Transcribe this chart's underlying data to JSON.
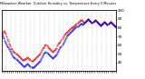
{
  "title": "Milwaukee Weather  Outdoor Humidity vs. Temperature Every 5 Minutes",
  "bg_color": "#ffffff",
  "grid_color": "#c0c0c0",
  "temp_color": "#dd0000",
  "humid_color": "#0000dd",
  "ylim_temp": [
    15,
    80
  ],
  "ylim_humid": [
    30,
    100
  ],
  "right_yticks": [
    40,
    50,
    60,
    70,
    80,
    90,
    100
  ],
  "right_ytick_labels": [
    "40",
    "50",
    "60",
    "70",
    "80",
    "90",
    "100"
  ],
  "n_points": 120,
  "temp_data": [
    54,
    56,
    58,
    57,
    55,
    52,
    49,
    47,
    44,
    42,
    40,
    39,
    37,
    36,
    35,
    34,
    33,
    32,
    31,
    30,
    29,
    28,
    27,
    27,
    28,
    28,
    29,
    30,
    29,
    28,
    27,
    26,
    26,
    27,
    28,
    29,
    30,
    31,
    32,
    33,
    34,
    36,
    38,
    40,
    41,
    42,
    43,
    42,
    41,
    40,
    39,
    38,
    37,
    36,
    37,
    38,
    39,
    40,
    42,
    44,
    45,
    46,
    48,
    50,
    52,
    54,
    55,
    56,
    57,
    58,
    59,
    60,
    61,
    62,
    62,
    63,
    64,
    65,
    66,
    67,
    68,
    69,
    70,
    70,
    69,
    68,
    67,
    68,
    69,
    70,
    71,
    70,
    69,
    68,
    67,
    68,
    69,
    70,
    69,
    68,
    67,
    66,
    65,
    64,
    65,
    66,
    67,
    68,
    67,
    66,
    65,
    66,
    67,
    68,
    67,
    66,
    65,
    64,
    63,
    62
  ],
  "humid_data": [
    72,
    70,
    68,
    65,
    63,
    61,
    59,
    57,
    55,
    53,
    51,
    49,
    47,
    46,
    45,
    44,
    43,
    42,
    41,
    40,
    39,
    38,
    37,
    36,
    36,
    37,
    38,
    39,
    38,
    37,
    36,
    35,
    34,
    35,
    36,
    37,
    38,
    39,
    40,
    41,
    42,
    44,
    46,
    48,
    50,
    51,
    52,
    51,
    50,
    49,
    48,
    47,
    46,
    45,
    46,
    47,
    48,
    49,
    51,
    53,
    55,
    57,
    59,
    61,
    63,
    65,
    67,
    69,
    71,
    72,
    73,
    74,
    75,
    76,
    77,
    78,
    79,
    80,
    81,
    82,
    83,
    84,
    85,
    85,
    84,
    85,
    86,
    87,
    88,
    89,
    90,
    89,
    88,
    87,
    86,
    87,
    88,
    89,
    88,
    87,
    86,
    85,
    84,
    83,
    84,
    85,
    86,
    87,
    86,
    85,
    84,
    85,
    86,
    87,
    86,
    85,
    84,
    83,
    82,
    81
  ]
}
